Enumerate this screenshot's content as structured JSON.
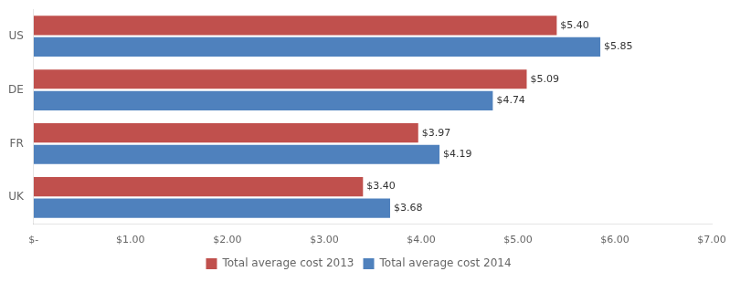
{
  "chart_data": {
    "type": "bar",
    "orientation": "horizontal",
    "categories": [
      "US",
      "DE",
      "FR",
      "UK"
    ],
    "series": [
      {
        "name": "Total average cost 2013",
        "color": "#c0504d",
        "values": [
          5.4,
          5.09,
          3.97,
          3.4
        ],
        "value_labels": [
          "$5.40",
          "$5.09",
          "$3.97",
          "$3.40"
        ]
      },
      {
        "name": "Total average cost 2014",
        "color": "#4f81bd",
        "values": [
          5.85,
          4.74,
          4.19,
          3.68
        ],
        "value_labels": [
          "$5.85",
          "$4.74",
          "$4.19",
          "$3.68"
        ]
      }
    ],
    "xlim": [
      0,
      7.0
    ],
    "xticks": [
      {
        "value": 0,
        "label": "$-"
      },
      {
        "value": 1.0,
        "label": "$1.00"
      },
      {
        "value": 2.0,
        "label": "$2.00"
      },
      {
        "value": 3.0,
        "label": "$3.00"
      },
      {
        "value": 4.0,
        "label": "$4.00"
      },
      {
        "value": 5.0,
        "label": "$5.00"
      },
      {
        "value": 6.0,
        "label": "$6.00"
      },
      {
        "value": 7.0,
        "label": "$7.00"
      }
    ],
    "data_labels": true,
    "grid": false,
    "legend": "bottom"
  }
}
